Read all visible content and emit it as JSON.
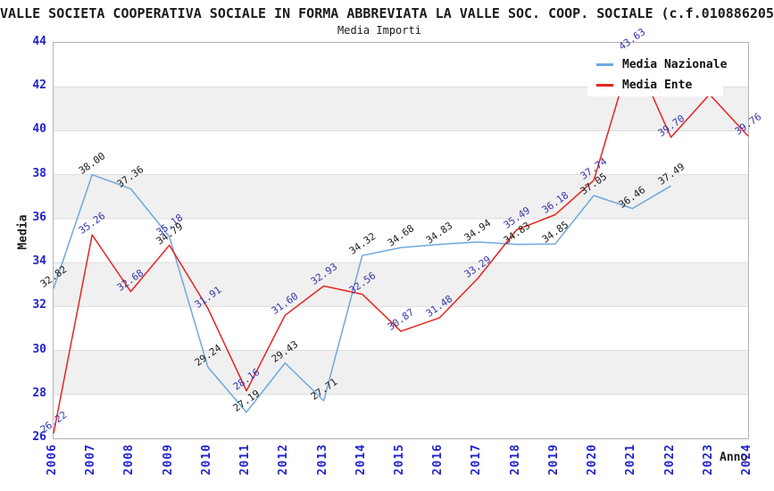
{
  "window": {
    "title": "VALLE SOCIETA COOPERATIVA SOCIALE IN FORMA ABBREVIATA LA VALLE SOC. COOP. SOCIALE (c.f.010886205",
    "subtitle": "Media Importi"
  },
  "chart_data": {
    "type": "line",
    "title": "Media Importi",
    "xlabel": "Anno",
    "ylabel": "Media",
    "ylim": [
      26,
      44
    ],
    "ytick_step": 2,
    "x_ticks": [
      2006,
      2007,
      2008,
      2009,
      2010,
      2011,
      2012,
      2013,
      2014,
      2015,
      2016,
      2017,
      2018,
      2019,
      2020,
      2021,
      2022,
      2023,
      2024
    ],
    "grid": "alternating-horizontal-bands",
    "legend_position": "top-right",
    "series": [
      {
        "name": "Media Nazionale",
        "color": "#6fa8dc",
        "label_color": "#1b1b1b",
        "x": [
          2006,
          2007,
          2008,
          2009,
          2010,
          2011,
          2012,
          2013,
          2014,
          2015,
          2016,
          2017,
          2018,
          2019,
          2020,
          2021,
          2022
        ],
        "values": [
          32.82,
          38.0,
          37.36,
          35.18,
          29.24,
          27.19,
          29.43,
          27.71,
          34.32,
          34.68,
          34.83,
          34.94,
          34.83,
          34.85,
          37.05,
          36.46,
          37.49
        ],
        "labels": [
          "32.82",
          "38.00",
          "37.36",
          "35.18",
          "29.24",
          "27.19",
          "29.43",
          "27.71",
          "34.32",
          "34.68",
          "34.83",
          "34.94",
          "34.83",
          "34.85",
          "37.05",
          "36.46",
          "37.49"
        ],
        "label_color_overrides": {
          "3": "#3434ad"
        }
      },
      {
        "name": "Media Ente",
        "color": "#e8241f",
        "label_color": "#3434ad",
        "x": [
          2006,
          2007,
          2008,
          2009,
          2010,
          2011,
          2012,
          2013,
          2014,
          2015,
          2016,
          2017,
          2018,
          2019,
          2020,
          2021,
          2022,
          2023,
          2024
        ],
        "values": [
          26.22,
          35.26,
          32.68,
          34.79,
          31.91,
          28.16,
          31.6,
          32.93,
          32.56,
          30.87,
          31.48,
          33.29,
          35.49,
          36.18,
          37.74,
          43.63,
          39.7,
          41.65,
          39.76
        ],
        "labels": [
          "26.22",
          "35.26",
          "32.68",
          "34.79",
          "31.91",
          "28.16",
          "31.60",
          "32.93",
          "32.56",
          "30.87",
          "31.48",
          "33.29",
          "35.49",
          "36.18",
          "37.74",
          "43.63",
          "39.70",
          "",
          "39.76"
        ],
        "label_color_overrides": {
          "3": "#1b1b1b"
        }
      }
    ],
    "colors": {
      "band_gray": "#f0f0f0",
      "grid_line": "#dcdcdc",
      "frame": "#b3b3b3",
      "tick_text": "#2222cc",
      "axis_text": "#1b1b1b"
    }
  }
}
